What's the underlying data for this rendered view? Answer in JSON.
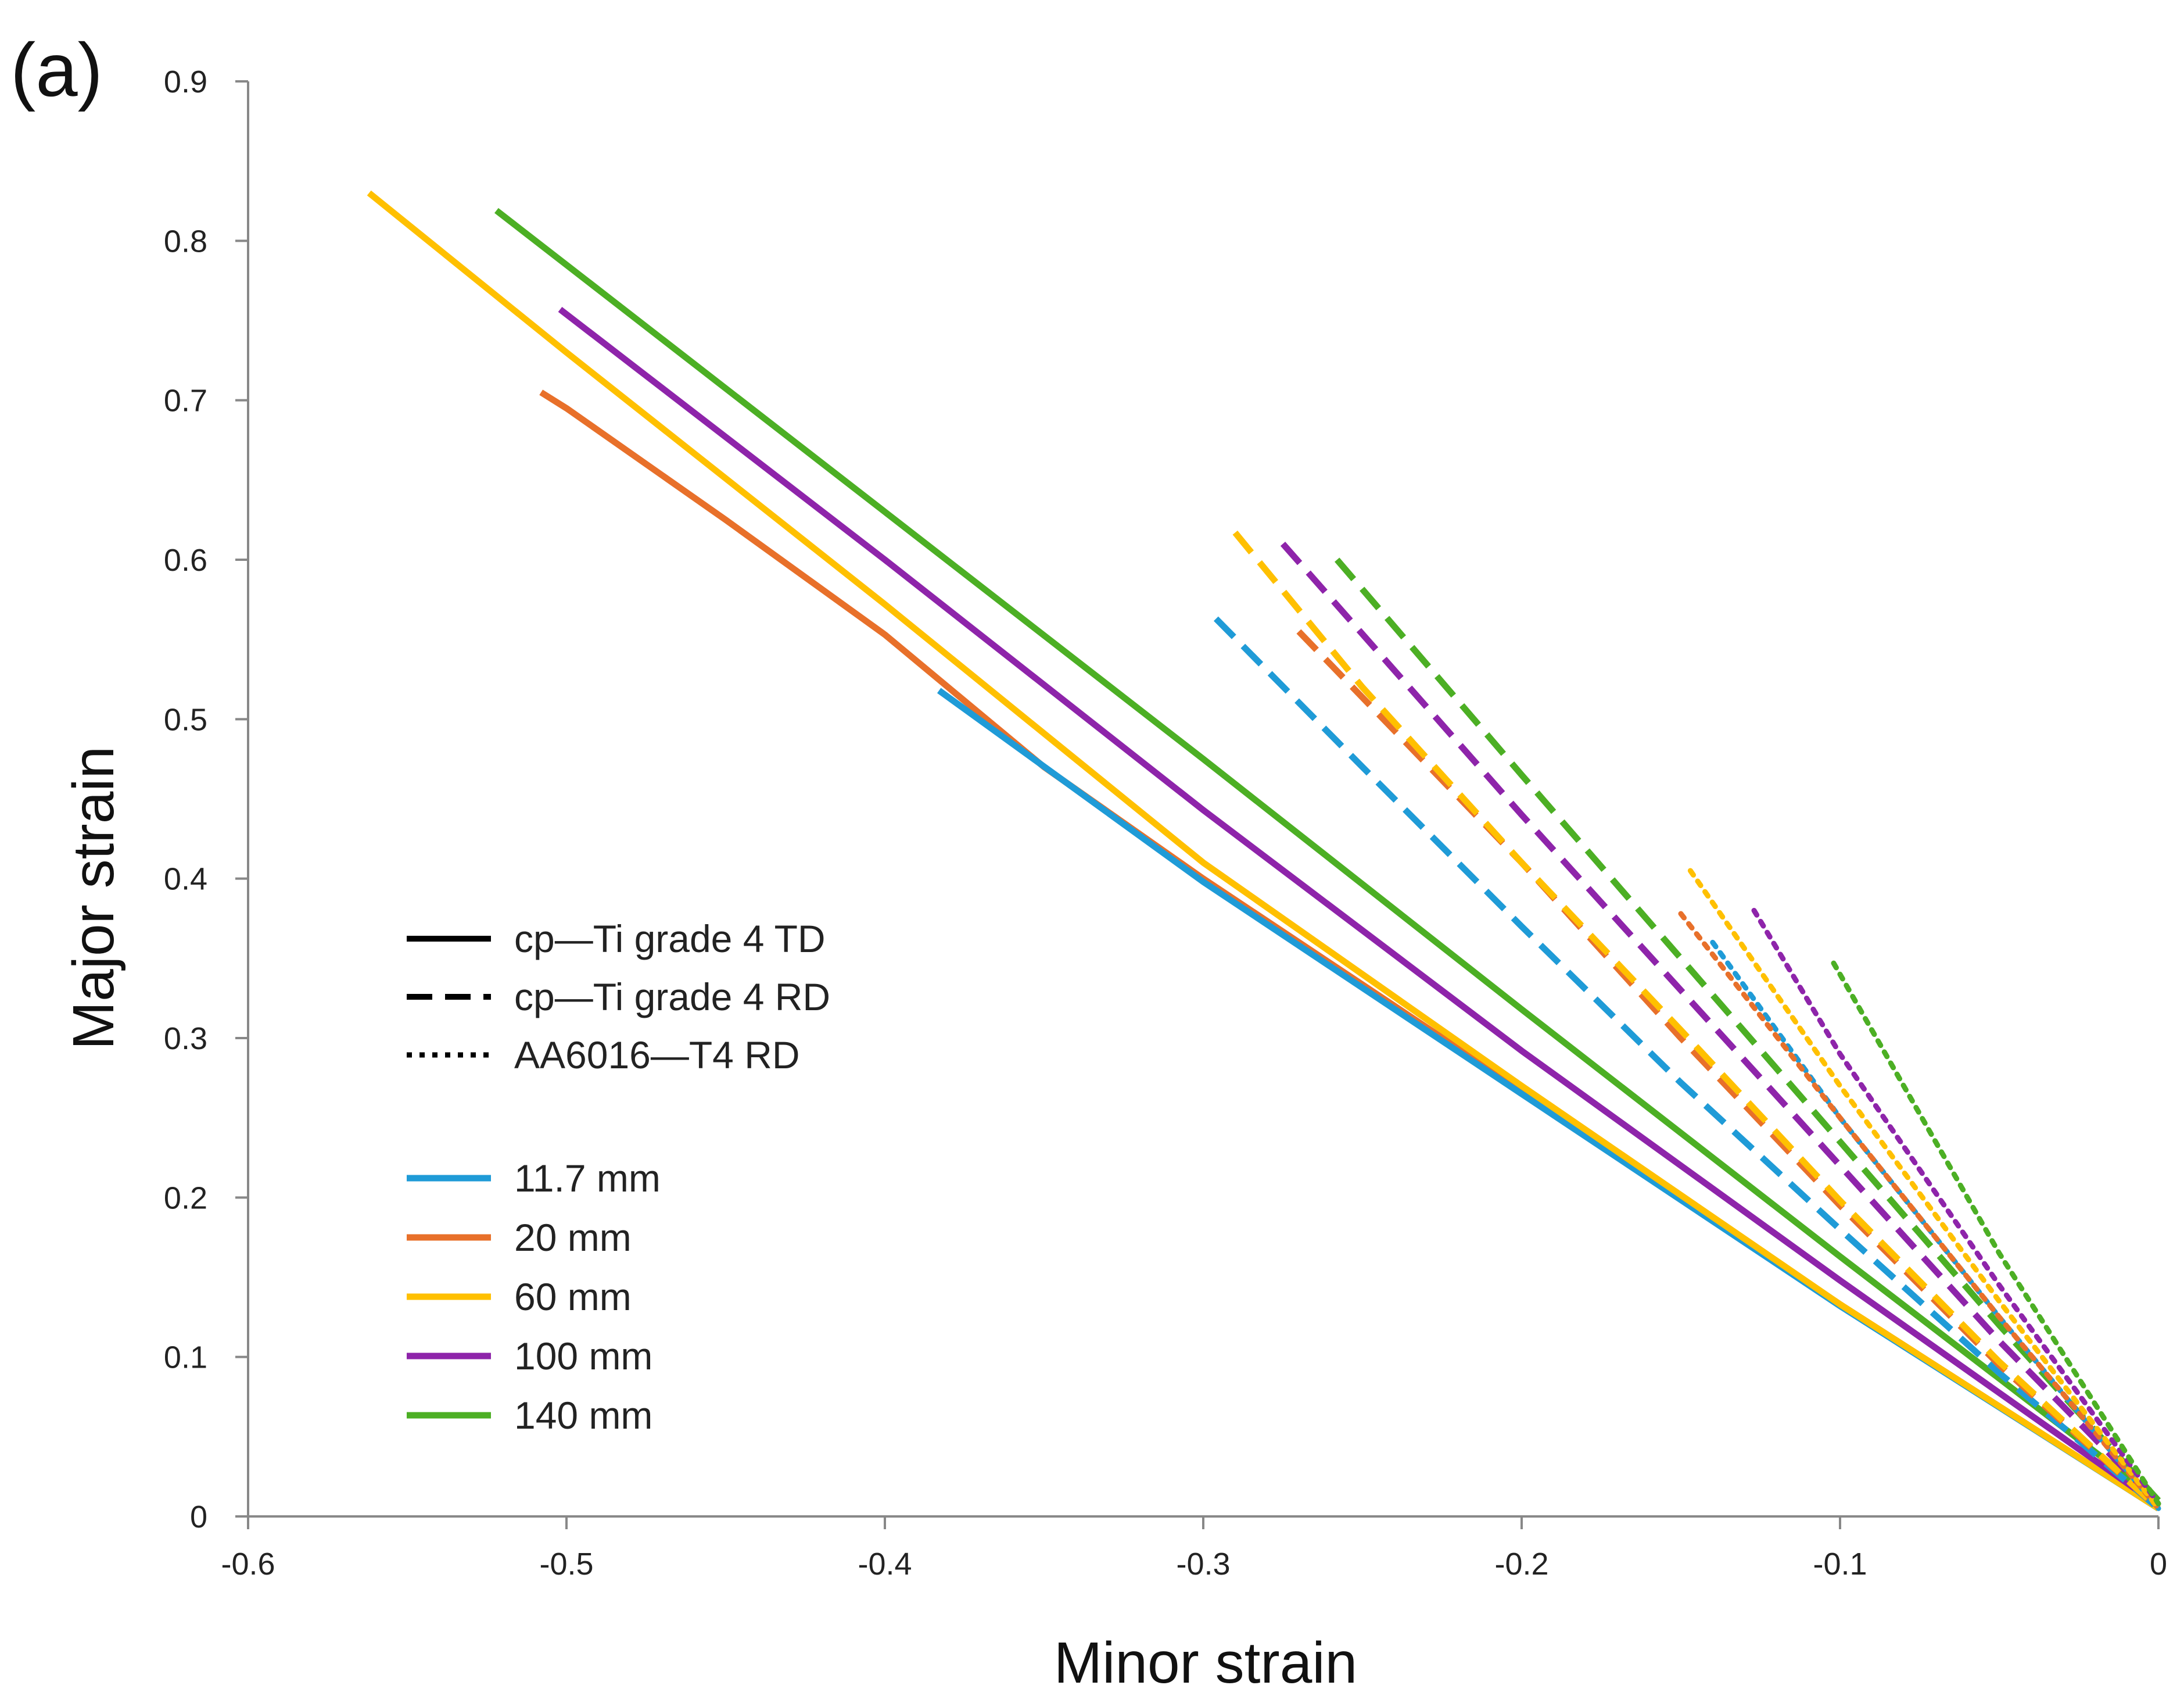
{
  "chart_data": {
    "type": "line",
    "panel_label": "(a)",
    "xlabel": "Minor strain",
    "ylabel": "Major strain",
    "xlim": [
      -0.6,
      0
    ],
    "ylim": [
      0,
      0.9
    ],
    "x_ticks": [
      -0.6,
      -0.5,
      -0.4,
      -0.3,
      -0.2,
      -0.1,
      0
    ],
    "y_ticks": [
      0,
      0.1,
      0.2,
      0.3,
      0.4,
      0.5,
      0.6,
      0.7,
      0.8,
      0.9
    ],
    "x_tick_labels": [
      "-0.6",
      "-0.5",
      "-0.4",
      "-0.3",
      "-0.2",
      "-0.1",
      "0"
    ],
    "y_tick_labels": [
      "0",
      "0.1",
      "0.2",
      "0.3",
      "0.4",
      "0.5",
      "0.6",
      "0.7",
      "0.8",
      "0.9"
    ],
    "grid": false,
    "legend_materials": [
      {
        "label": "cp—Ti grade 4 TD",
        "style": "solid"
      },
      {
        "label": "cp—Ti grade 4 RD",
        "style": "dashed"
      },
      {
        "label": "AA6016—T4 RD",
        "style": "dotted"
      }
    ],
    "legend_sizes": [
      {
        "label": "11.7 mm",
        "color": "#1f9bd7"
      },
      {
        "label": "20 mm",
        "color": "#e8702a"
      },
      {
        "label": "60 mm",
        "color": "#ffc000"
      },
      {
        "label": "100 mm",
        "color": "#8e24aa"
      },
      {
        "label": "140 mm",
        "color": "#4caf24"
      }
    ],
    "series": [
      {
        "name": "cp-Ti grade 4 TD 20 mm",
        "material": "cp-Ti grade 4 TD",
        "size": "20 mm",
        "style": "solid",
        "color": "#e8702a",
        "x": [
          -0.508,
          -0.5,
          -0.45,
          -0.4,
          -0.35,
          -0.3,
          -0.2,
          -0.1,
          0
        ],
        "y": [
          0.705,
          0.695,
          0.625,
          0.553,
          0.47,
          0.4,
          0.267,
          0.133,
          0.005
        ]
      },
      {
        "name": "cp-Ti grade 4 TD 11.7 mm",
        "material": "cp-Ti grade 4 TD",
        "size": "11.7 mm",
        "style": "solid",
        "color": "#1f9bd7",
        "x": [
          -0.383,
          -0.3,
          -0.2,
          -0.1,
          0
        ],
        "y": [
          0.518,
          0.398,
          0.265,
          0.132,
          0.005
        ]
      },
      {
        "name": "cp-Ti grade 4 TD 60 mm",
        "material": "cp-Ti grade 4 TD",
        "size": "60 mm",
        "style": "solid",
        "color": "#ffc000",
        "x": [
          -0.562,
          -0.5,
          -0.4,
          -0.3,
          -0.2,
          -0.1,
          0
        ],
        "y": [
          0.83,
          0.73,
          0.572,
          0.41,
          0.27,
          0.133,
          0.005
        ]
      },
      {
        "name": "cp-Ti grade 4 TD 100 mm",
        "material": "cp-Ti grade 4 TD",
        "size": "100 mm",
        "style": "solid",
        "color": "#8e24aa",
        "x": [
          -0.502,
          -0.4,
          -0.3,
          -0.2,
          -0.1,
          0
        ],
        "y": [
          0.757,
          0.6,
          0.443,
          0.292,
          0.148,
          0.007
        ]
      },
      {
        "name": "cp-Ti grade 4 TD 140 mm",
        "material": "cp-Ti grade 4 TD",
        "size": "140 mm",
        "style": "solid",
        "color": "#4caf24",
        "x": [
          -0.522,
          -0.4,
          -0.3,
          -0.2,
          -0.1,
          0
        ],
        "y": [
          0.819,
          0.63,
          0.475,
          0.318,
          0.163,
          0.01
        ]
      },
      {
        "name": "cp-Ti grade 4 RD 11.7 mm",
        "material": "cp-Ti grade 4 RD",
        "size": "11.7 mm",
        "style": "dashed",
        "color": "#1f9bd7",
        "x": [
          -0.296,
          -0.25,
          -0.2,
          -0.15,
          -0.1,
          -0.05,
          0
        ],
        "y": [
          0.563,
          0.47,
          0.37,
          0.272,
          0.18,
          0.09,
          0.005
        ]
      },
      {
        "name": "cp-Ti grade 4 RD 20 mm",
        "material": "cp-Ti grade 4 RD",
        "size": "20 mm",
        "style": "dashed",
        "color": "#e8702a",
        "x": [
          -0.27,
          -0.2,
          -0.15,
          -0.1,
          -0.05,
          0
        ],
        "y": [
          0.555,
          0.41,
          0.3,
          0.195,
          0.095,
          0.005
        ]
      },
      {
        "name": "cp-Ti grade 4 RD 60 mm",
        "material": "cp-Ti grade 4 RD",
        "size": "60 mm",
        "style": "dashed",
        "color": "#ffc000",
        "x": [
          -0.29,
          -0.25,
          -0.2,
          -0.15,
          -0.1,
          -0.05,
          0
        ],
        "y": [
          0.617,
          0.52,
          0.41,
          0.305,
          0.198,
          0.097,
          0.005
        ]
      },
      {
        "name": "cp-Ti grade 4 RD 100 mm",
        "material": "cp-Ti grade 4 RD",
        "size": "100 mm",
        "style": "dashed",
        "color": "#8e24aa",
        "x": [
          -0.275,
          -0.2,
          -0.15,
          -0.1,
          -0.05,
          0
        ],
        "y": [
          0.61,
          0.44,
          0.33,
          0.22,
          0.11,
          0.008
        ]
      },
      {
        "name": "cp-Ti grade 4 RD 140 mm",
        "material": "cp-Ti grade 4 RD",
        "size": "140 mm",
        "style": "dashed",
        "color": "#4caf24",
        "x": [
          -0.258,
          -0.2,
          -0.15,
          -0.1,
          -0.05,
          0
        ],
        "y": [
          0.6,
          0.465,
          0.35,
          0.235,
          0.12,
          0.01
        ]
      },
      {
        "name": "AA6016-T4 RD 11.7 mm",
        "material": "AA6016-T4 RD",
        "size": "11.7 mm",
        "style": "dotted",
        "color": "#1f9bd7",
        "x": [
          -0.14,
          -0.1,
          -0.05,
          0
        ],
        "y": [
          0.36,
          0.25,
          0.125,
          0.005
        ]
      },
      {
        "name": "AA6016-T4 RD 20 mm",
        "material": "AA6016-T4 RD",
        "size": "20 mm",
        "style": "dotted",
        "color": "#e8702a",
        "x": [
          -0.15,
          -0.1,
          -0.05,
          0
        ],
        "y": [
          0.378,
          0.25,
          0.125,
          0.005
        ]
      },
      {
        "name": "AA6016-T4 RD 60 mm",
        "material": "AA6016-T4 RD",
        "size": "60 mm",
        "style": "dotted",
        "color": "#ffc000",
        "x": [
          -0.147,
          -0.1,
          -0.05,
          0
        ],
        "y": [
          0.405,
          0.27,
          0.135,
          0.005
        ]
      },
      {
        "name": "AA6016-T4 RD 100 mm",
        "material": "AA6016-T4 RD",
        "size": "100 mm",
        "style": "dotted",
        "color": "#8e24aa",
        "x": [
          -0.127,
          -0.1,
          -0.05,
          0
        ],
        "y": [
          0.38,
          0.29,
          0.145,
          0.008
        ]
      },
      {
        "name": "AA6016-T4 RD 140 mm",
        "material": "AA6016-T4 RD",
        "size": "140 mm",
        "style": "dotted",
        "color": "#4caf24",
        "x": [
          -0.102,
          -0.08,
          -0.05,
          0
        ],
        "y": [
          0.347,
          0.27,
          0.165,
          0.008
        ]
      }
    ]
  }
}
